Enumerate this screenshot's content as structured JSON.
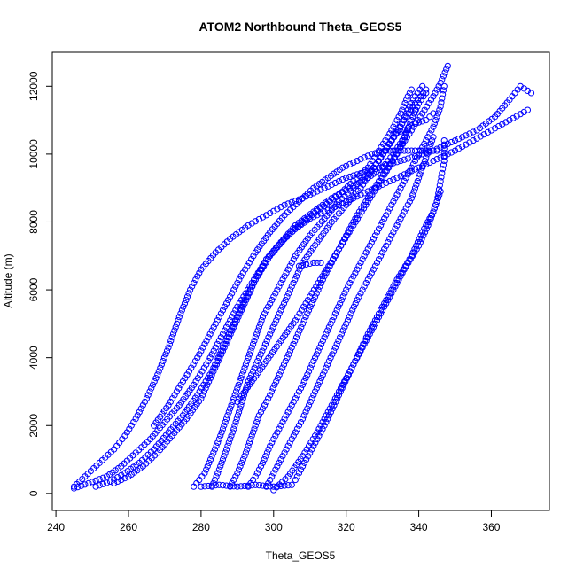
{
  "chart_data": {
    "type": "scatter",
    "title": "ATOM2 Northbound Theta_GEOS5",
    "xlabel": "Theta_GEOS5",
    "ylabel": "Altitude (m)",
    "xlim": [
      239,
      376
    ],
    "ylim": [
      -500,
      13000
    ],
    "x_ticks": [
      240,
      260,
      280,
      300,
      320,
      340,
      360
    ],
    "y_ticks": [
      0,
      2000,
      4000,
      6000,
      8000,
      10000,
      12000
    ],
    "marker": "open-circle",
    "color": "#0000ff",
    "grid": false,
    "series": [
      {
        "points": [
          [
            245,
            200
          ],
          [
            248,
            500
          ],
          [
            252,
            900
          ],
          [
            256,
            1300
          ],
          [
            259,
            1700
          ],
          [
            262,
            2200
          ],
          [
            265,
            2800
          ],
          [
            268,
            3500
          ],
          [
            271,
            4300
          ],
          [
            274,
            5200
          ],
          [
            277,
            6000
          ],
          [
            280,
            6600
          ],
          [
            284,
            7100
          ],
          [
            288,
            7500
          ],
          [
            293,
            7900
          ],
          [
            298,
            8200
          ],
          [
            303,
            8500
          ],
          [
            308,
            8700
          ],
          [
            314,
            9000
          ],
          [
            320,
            9300
          ],
          [
            326,
            9500
          ],
          [
            332,
            9700
          ],
          [
            338,
            9900
          ],
          [
            344,
            10100
          ],
          [
            350,
            10400
          ],
          [
            356,
            10700
          ],
          [
            361,
            11100
          ],
          [
            365,
            11600
          ],
          [
            368,
            12000
          ],
          [
            371,
            11800
          ]
        ]
      },
      {
        "points": [
          [
            245,
            150
          ],
          [
            249,
            300
          ],
          [
            254,
            500
          ],
          [
            258,
            800
          ],
          [
            262,
            1200
          ],
          [
            266,
            1600
          ],
          [
            270,
            2100
          ],
          [
            274,
            2600
          ],
          [
            278,
            3200
          ],
          [
            282,
            3900
          ],
          [
            286,
            4700
          ],
          [
            290,
            5500
          ],
          [
            294,
            6200
          ],
          [
            298,
            6900
          ],
          [
            302,
            7400
          ],
          [
            306,
            7800
          ],
          [
            310,
            8100
          ],
          [
            314,
            8300
          ],
          [
            318,
            8500
          ],
          [
            322,
            8700
          ],
          [
            326,
            8900
          ],
          [
            330,
            9100
          ],
          [
            334,
            9300
          ],
          [
            338,
            9500
          ],
          [
            342,
            9700
          ],
          [
            346,
            9900
          ],
          [
            350,
            10100
          ],
          [
            355,
            10400
          ],
          [
            360,
            10700
          ],
          [
            365,
            11000
          ],
          [
            370,
            11300
          ]
        ]
      },
      {
        "points": [
          [
            251,
            200
          ],
          [
            255,
            350
          ],
          [
            259,
            600
          ],
          [
            263,
            900
          ],
          [
            267,
            1300
          ],
          [
            271,
            1800
          ],
          [
            275,
            2300
          ],
          [
            279,
            2900
          ],
          [
            283,
            3600
          ],
          [
            286,
            4300
          ],
          [
            289,
            5000
          ],
          [
            292,
            5700
          ],
          [
            295,
            6300
          ],
          [
            298,
            6900
          ],
          [
            302,
            7400
          ],
          [
            306,
            7900
          ],
          [
            311,
            8300
          ],
          [
            316,
            8700
          ],
          [
            321,
            9000
          ],
          [
            326,
            9300
          ],
          [
            330,
            9600
          ],
          [
            333,
            10000
          ],
          [
            336,
            10500
          ],
          [
            338,
            11000
          ],
          [
            340,
            11500
          ],
          [
            342,
            11800
          ]
        ]
      },
      {
        "points": [
          [
            256,
            300
          ],
          [
            260,
            500
          ],
          [
            264,
            800
          ],
          [
            268,
            1200
          ],
          [
            272,
            1700
          ],
          [
            276,
            2200
          ],
          [
            280,
            2800
          ],
          [
            283,
            3500
          ],
          [
            286,
            4200
          ],
          [
            289,
            4900
          ],
          [
            292,
            5600
          ],
          [
            295,
            6300
          ],
          [
            299,
            7000
          ],
          [
            303,
            7500
          ],
          [
            308,
            8000
          ],
          [
            313,
            8400
          ],
          [
            318,
            8800
          ],
          [
            322,
            9200
          ],
          [
            326,
            9600
          ],
          [
            329,
            10100
          ],
          [
            332,
            10600
          ],
          [
            335,
            11200
          ],
          [
            337,
            11700
          ],
          [
            338,
            11900
          ]
        ]
      },
      {
        "points": [
          [
            278,
            200
          ],
          [
            281,
            600
          ],
          [
            283,
            1100
          ],
          [
            285,
            1600
          ],
          [
            287,
            2200
          ],
          [
            289,
            2800
          ],
          [
            291,
            3400
          ],
          [
            293,
            4000
          ],
          [
            295,
            4600
          ],
          [
            297,
            5200
          ],
          [
            300,
            5800
          ],
          [
            303,
            6400
          ],
          [
            306,
            7000
          ],
          [
            310,
            7600
          ],
          [
            314,
            8100
          ],
          [
            318,
            8600
          ],
          [
            322,
            9000
          ],
          [
            326,
            9400
          ],
          [
            329,
            9800
          ],
          [
            332,
            10300
          ],
          [
            335,
            10800
          ],
          [
            337,
            11300
          ],
          [
            339,
            11700
          ],
          [
            341,
            12000
          ]
        ]
      },
      {
        "points": [
          [
            283,
            200
          ],
          [
            285,
            700
          ],
          [
            287,
            1300
          ],
          [
            289,
            1900
          ],
          [
            291,
            2600
          ],
          [
            293,
            3300
          ],
          [
            296,
            4000
          ],
          [
            299,
            4700
          ],
          [
            302,
            5400
          ],
          [
            305,
            6100
          ],
          [
            308,
            6800
          ],
          [
            312,
            7400
          ],
          [
            316,
            8000
          ],
          [
            320,
            8500
          ],
          [
            324,
            9000
          ],
          [
            327,
            9500
          ],
          [
            330,
            10000
          ],
          [
            333,
            10500
          ],
          [
            336,
            11000
          ],
          [
            339,
            11500
          ],
          [
            342,
            11900
          ]
        ]
      },
      {
        "points": [
          [
            288,
            200
          ],
          [
            290,
            600
          ],
          [
            292,
            1100
          ],
          [
            294,
            1700
          ],
          [
            296,
            2300
          ],
          [
            299,
            2900
          ],
          [
            302,
            3600
          ],
          [
            305,
            4300
          ],
          [
            308,
            5000
          ],
          [
            311,
            5700
          ],
          [
            314,
            6400
          ],
          [
            317,
            7000
          ],
          [
            320,
            7600
          ],
          [
            323,
            8200
          ],
          [
            326,
            8700
          ],
          [
            329,
            9200
          ],
          [
            332,
            9700
          ],
          [
            335,
            10200
          ],
          [
            338,
            10700
          ],
          [
            341,
            11200
          ],
          [
            344,
            11700
          ],
          [
            346,
            12100
          ],
          [
            348,
            12600
          ]
        ]
      },
      {
        "points": [
          [
            293,
            200
          ],
          [
            295,
            500
          ],
          [
            297,
            900
          ],
          [
            299,
            1400
          ],
          [
            302,
            2000
          ],
          [
            305,
            2600
          ],
          [
            308,
            3200
          ],
          [
            311,
            3900
          ],
          [
            314,
            4600
          ],
          [
            317,
            5300
          ],
          [
            320,
            6000
          ],
          [
            323,
            6600
          ],
          [
            326,
            7200
          ],
          [
            329,
            7800
          ],
          [
            332,
            8400
          ],
          [
            335,
            9000
          ],
          [
            338,
            9600
          ],
          [
            341,
            10200
          ],
          [
            344,
            10800
          ],
          [
            346,
            11400
          ],
          [
            347,
            12000
          ]
        ]
      },
      {
        "points": [
          [
            298,
            200
          ],
          [
            300,
            600
          ],
          [
            302,
            1000
          ],
          [
            305,
            1600
          ],
          [
            308,
            2200
          ],
          [
            311,
            2900
          ],
          [
            314,
            3600
          ],
          [
            317,
            4300
          ],
          [
            320,
            5000
          ],
          [
            323,
            5700
          ],
          [
            326,
            6300
          ],
          [
            329,
            6900
          ],
          [
            332,
            7500
          ],
          [
            335,
            8100
          ],
          [
            338,
            8700
          ],
          [
            340,
            9300
          ],
          [
            342,
            9900
          ],
          [
            344,
            10500
          ]
        ]
      },
      {
        "points": [
          [
            300,
            100
          ],
          [
            304,
            500
          ],
          [
            308,
            1100
          ],
          [
            312,
            1800
          ],
          [
            316,
            2600
          ],
          [
            320,
            3400
          ],
          [
            324,
            4200
          ],
          [
            328,
            5000
          ],
          [
            332,
            5800
          ],
          [
            336,
            6600
          ],
          [
            340,
            7300
          ],
          [
            343,
            8000
          ],
          [
            345,
            8600
          ],
          [
            346,
            9200
          ],
          [
            347,
            9800
          ],
          [
            347,
            10400
          ]
        ]
      },
      {
        "points": [
          [
            306,
            400
          ],
          [
            310,
            1200
          ],
          [
            314,
            2000
          ],
          [
            318,
            2900
          ],
          [
            322,
            3800
          ],
          [
            326,
            4700
          ],
          [
            330,
            5500
          ],
          [
            334,
            6300
          ],
          [
            338,
            7000
          ],
          [
            341,
            7700
          ],
          [
            344,
            8300
          ],
          [
            346,
            8900
          ]
        ]
      },
      {
        "points": [
          [
            290,
            2700
          ],
          [
            294,
            3300
          ],
          [
            298,
            3900
          ],
          [
            302,
            4500
          ],
          [
            306,
            5100
          ],
          [
            310,
            5800
          ],
          [
            314,
            6500
          ],
          [
            318,
            7200
          ],
          [
            322,
            7900
          ],
          [
            326,
            8600
          ],
          [
            330,
            9300
          ],
          [
            334,
            10000
          ],
          [
            337,
            10700
          ],
          [
            339,
            11300
          ]
        ]
      },
      {
        "points": [
          [
            267,
            2000
          ],
          [
            271,
            2600
          ],
          [
            275,
            3300
          ],
          [
            279,
            4000
          ],
          [
            283,
            4800
          ],
          [
            287,
            5600
          ],
          [
            291,
            6400
          ],
          [
            295,
            7100
          ],
          [
            299,
            7700
          ],
          [
            303,
            8200
          ],
          [
            307,
            8600
          ],
          [
            311,
            9000
          ],
          [
            315,
            9300
          ],
          [
            319,
            9600
          ],
          [
            323,
            9800
          ],
          [
            327,
            10000
          ],
          [
            331,
            10100
          ],
          [
            335,
            10100
          ],
          [
            340,
            10100
          ],
          [
            345,
            10100
          ]
        ]
      },
      {
        "points": [
          [
            307,
            6700
          ],
          [
            309,
            6750
          ],
          [
            311,
            6800
          ],
          [
            313,
            6800
          ]
        ]
      },
      {
        "points": [
          [
            280,
            200
          ],
          [
            285,
            250
          ],
          [
            290,
            200
          ],
          [
            295,
            250
          ],
          [
            300,
            200
          ],
          [
            305,
            250
          ]
        ]
      },
      {
        "points": [
          [
            333,
            10600
          ],
          [
            336,
            10700
          ],
          [
            339,
            10900
          ],
          [
            342,
            11000
          ],
          [
            344,
            11200
          ]
        ]
      }
    ]
  }
}
